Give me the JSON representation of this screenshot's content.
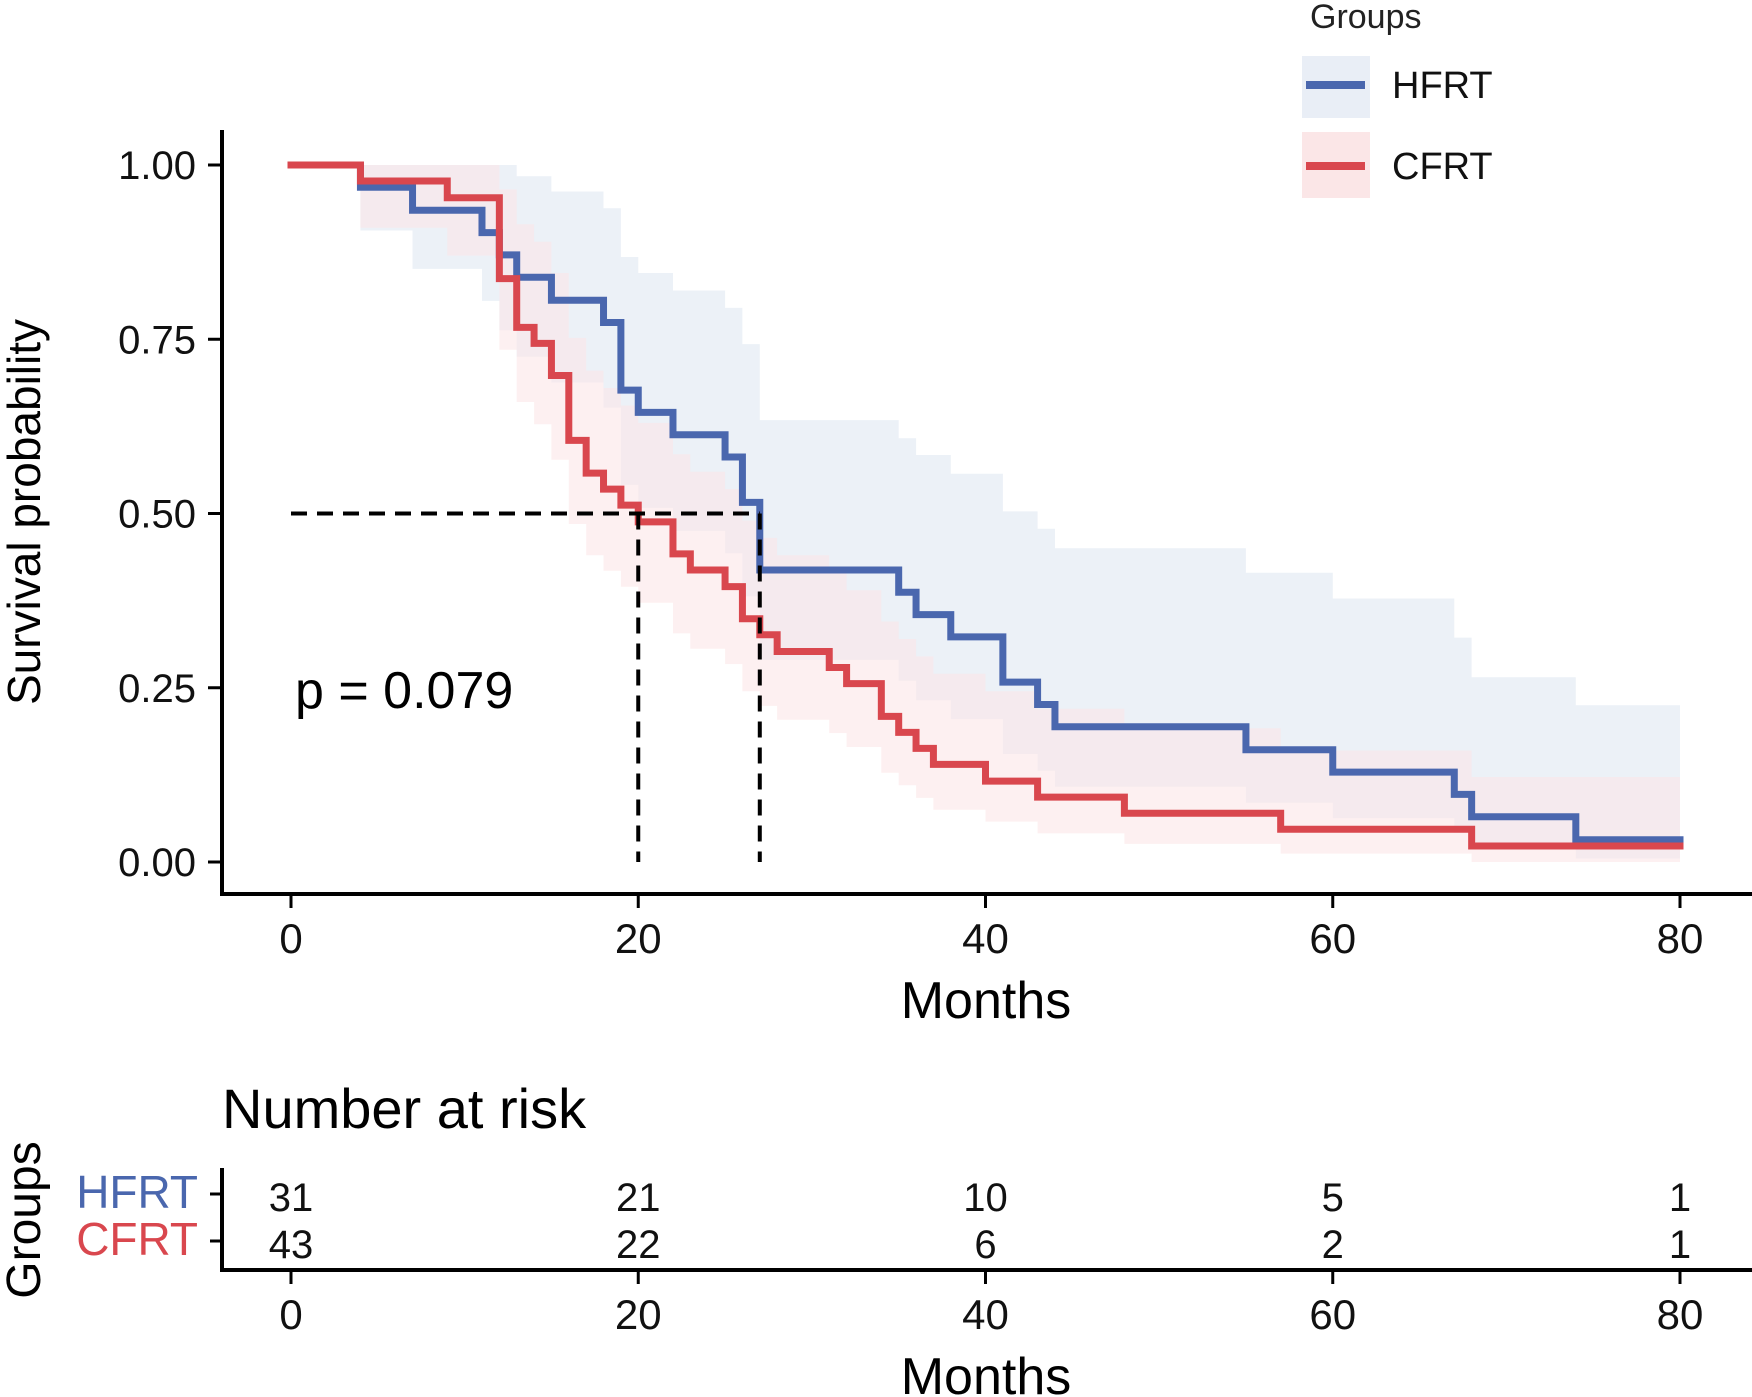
{
  "chart_data": {
    "type": "line",
    "subtype": "kaplan-meier",
    "xlabel": "Months",
    "ylabel": "Survival probability",
    "xlim": [
      0,
      80
    ],
    "ylim": [
      0,
      1
    ],
    "x_ticks": [
      "0",
      "20",
      "40",
      "60",
      "80"
    ],
    "y_ticks": [
      "0.00",
      "0.25",
      "0.50",
      "0.75",
      "1.00"
    ],
    "x_tick_values": [
      0,
      20,
      40,
      60,
      80
    ],
    "y_tick_values": [
      0,
      0.25,
      0.5,
      0.75,
      1.0
    ],
    "p_value_label": "p = 0.079",
    "median_survival": {
      "HFRT": 27,
      "CFRT": 20
    },
    "legend": {
      "title": "Groups",
      "position": "top-right",
      "entries": [
        "HFRT",
        "CFRT"
      ]
    },
    "series": [
      {
        "name": "HFRT",
        "color": "#4A67AE",
        "band_color": "#E9EEF6",
        "steps": [
          [
            0,
            1.0
          ],
          [
            4,
            0.968
          ],
          [
            7,
            0.935
          ],
          [
            11,
            0.903
          ],
          [
            12,
            0.871
          ],
          [
            13,
            0.839
          ],
          [
            15,
            0.806
          ],
          [
            18,
            0.774
          ],
          [
            19,
            0.677
          ],
          [
            20,
            0.645
          ],
          [
            22,
            0.613
          ],
          [
            25,
            0.581
          ],
          [
            26,
            0.516
          ],
          [
            27,
            0.419
          ],
          [
            35,
            0.387
          ],
          [
            36,
            0.355
          ],
          [
            38,
            0.323
          ],
          [
            41,
            0.258
          ],
          [
            43,
            0.226
          ],
          [
            44,
            0.194
          ],
          [
            55,
            0.161
          ],
          [
            60,
            0.129
          ],
          [
            67,
            0.097
          ],
          [
            68,
            0.065
          ],
          [
            74,
            0.032
          ],
          [
            80,
            0.032
          ]
        ],
        "lower": [
          [
            0,
            1.0
          ],
          [
            4,
            0.906
          ],
          [
            7,
            0.851
          ],
          [
            11,
            0.805
          ],
          [
            12,
            0.763
          ],
          [
            13,
            0.725
          ],
          [
            15,
            0.688
          ],
          [
            18,
            0.652
          ],
          [
            19,
            0.541
          ],
          [
            20,
            0.508
          ],
          [
            22,
            0.475
          ],
          [
            25,
            0.443
          ],
          [
            26,
            0.381
          ],
          [
            27,
            0.29
          ],
          [
            35,
            0.26
          ],
          [
            36,
            0.232
          ],
          [
            38,
            0.205
          ],
          [
            41,
            0.155
          ],
          [
            43,
            0.131
          ],
          [
            44,
            0.108
          ],
          [
            55,
            0.085
          ],
          [
            60,
            0.063
          ],
          [
            67,
            0.042
          ],
          [
            68,
            0.022
          ],
          [
            74,
            0.005
          ],
          [
            80,
            0.005
          ]
        ],
        "upper": [
          [
            0,
            1.0
          ],
          [
            4,
            1.0
          ],
          [
            7,
            1.0
          ],
          [
            11,
            1.0
          ],
          [
            12,
            1.0
          ],
          [
            13,
            0.984
          ],
          [
            15,
            0.962
          ],
          [
            18,
            0.938
          ],
          [
            19,
            0.868
          ],
          [
            20,
            0.845
          ],
          [
            22,
            0.82
          ],
          [
            25,
            0.795
          ],
          [
            26,
            0.743
          ],
          [
            27,
            0.634
          ],
          [
            35,
            0.608
          ],
          [
            36,
            0.584
          ],
          [
            38,
            0.557
          ],
          [
            41,
            0.503
          ],
          [
            43,
            0.478
          ],
          [
            44,
            0.45
          ],
          [
            55,
            0.415
          ],
          [
            60,
            0.378
          ],
          [
            67,
            0.322
          ],
          [
            68,
            0.265
          ],
          [
            74,
            0.225
          ],
          [
            80,
            0.225
          ]
        ]
      },
      {
        "name": "CFRT",
        "color": "#D9474E",
        "band_color": "#FBE6E7",
        "steps": [
          [
            0,
            1.0
          ],
          [
            4,
            0.977
          ],
          [
            9,
            0.953
          ],
          [
            12,
            0.837
          ],
          [
            13,
            0.767
          ],
          [
            14,
            0.744
          ],
          [
            15,
            0.698
          ],
          [
            16,
            0.605
          ],
          [
            17,
            0.558
          ],
          [
            18,
            0.535
          ],
          [
            19,
            0.512
          ],
          [
            20,
            0.488
          ],
          [
            22,
            0.442
          ],
          [
            23,
            0.419
          ],
          [
            25,
            0.395
          ],
          [
            26,
            0.349
          ],
          [
            27,
            0.326
          ],
          [
            28,
            0.302
          ],
          [
            31,
            0.279
          ],
          [
            32,
            0.256
          ],
          [
            34,
            0.209
          ],
          [
            35,
            0.186
          ],
          [
            36,
            0.163
          ],
          [
            37,
            0.14
          ],
          [
            40,
            0.116
          ],
          [
            43,
            0.093
          ],
          [
            48,
            0.07
          ],
          [
            57,
            0.047
          ],
          [
            68,
            0.023
          ],
          [
            80,
            0.023
          ]
        ],
        "lower": [
          [
            0,
            1.0
          ],
          [
            4,
            0.91
          ],
          [
            9,
            0.87
          ],
          [
            12,
            0.735
          ],
          [
            13,
            0.66
          ],
          [
            14,
            0.628
          ],
          [
            15,
            0.577
          ],
          [
            16,
            0.485
          ],
          [
            17,
            0.44
          ],
          [
            18,
            0.418
          ],
          [
            19,
            0.395
          ],
          [
            20,
            0.372
          ],
          [
            22,
            0.328
          ],
          [
            23,
            0.306
          ],
          [
            25,
            0.284
          ],
          [
            26,
            0.245
          ],
          [
            27,
            0.224
          ],
          [
            28,
            0.204
          ],
          [
            31,
            0.185
          ],
          [
            32,
            0.165
          ],
          [
            34,
            0.128
          ],
          [
            35,
            0.11
          ],
          [
            36,
            0.092
          ],
          [
            37,
            0.075
          ],
          [
            40,
            0.058
          ],
          [
            43,
            0.041
          ],
          [
            48,
            0.026
          ],
          [
            57,
            0.012
          ],
          [
            68,
            0.0
          ],
          [
            80,
            0.0
          ]
        ],
        "upper": [
          [
            0,
            1.0
          ],
          [
            4,
            1.0
          ],
          [
            9,
            1.0
          ],
          [
            12,
            0.965
          ],
          [
            13,
            0.915
          ],
          [
            14,
            0.89
          ],
          [
            15,
            0.845
          ],
          [
            16,
            0.752
          ],
          [
            17,
            0.705
          ],
          [
            18,
            0.68
          ],
          [
            19,
            0.655
          ],
          [
            20,
            0.63
          ],
          [
            22,
            0.585
          ],
          [
            23,
            0.56
          ],
          [
            25,
            0.535
          ],
          [
            26,
            0.49
          ],
          [
            27,
            0.465
          ],
          [
            28,
            0.44
          ],
          [
            31,
            0.415
          ],
          [
            32,
            0.39
          ],
          [
            34,
            0.345
          ],
          [
            35,
            0.32
          ],
          [
            36,
            0.295
          ],
          [
            37,
            0.27
          ],
          [
            40,
            0.245
          ],
          [
            43,
            0.22
          ],
          [
            48,
            0.192
          ],
          [
            57,
            0.16
          ],
          [
            68,
            0.122
          ],
          [
            80,
            0.122
          ]
        ]
      }
    ],
    "risk_table": {
      "title": "Number at risk",
      "ylabel": "Groups",
      "xlabel": "Months",
      "times": [
        0,
        20,
        40,
        60,
        80
      ],
      "rows": [
        {
          "name": "HFRT",
          "color": "#4A67AE",
          "counts": [
            "31",
            "21",
            "10",
            "5",
            "1"
          ]
        },
        {
          "name": "CFRT",
          "color": "#D9474E",
          "counts": [
            "43",
            "22",
            "6",
            "2",
            "1"
          ]
        }
      ]
    }
  }
}
